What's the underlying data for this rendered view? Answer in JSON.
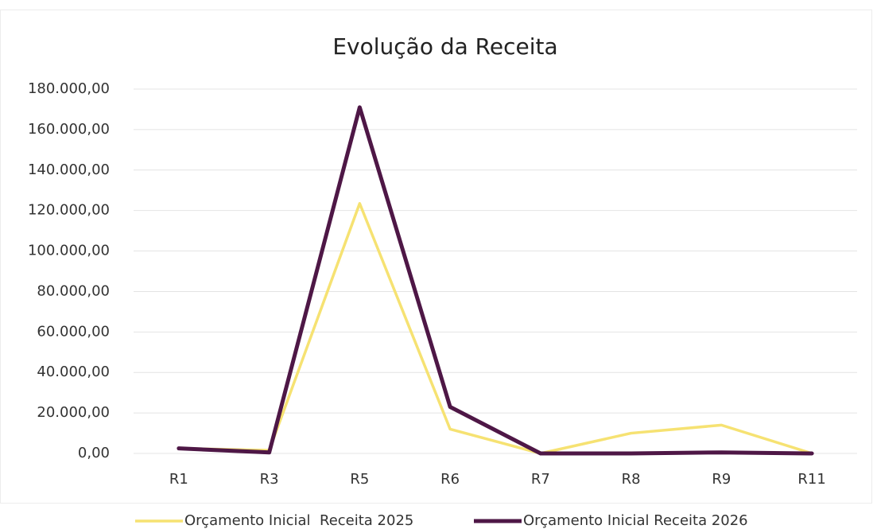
{
  "chart_data": {
    "type": "line",
    "title": "Evolução da Receita",
    "categories": [
      "R1",
      "R3",
      "R5",
      "R6",
      "R7",
      "R8",
      "R9",
      "R11"
    ],
    "series": [
      {
        "name": "Orçamento Inicial  Receita 2025",
        "color": "#f6e272",
        "values": [
          2500,
          1500,
          123500,
          12000,
          0,
          10000,
          14000,
          0
        ]
      },
      {
        "name": "Orçamento Inicial Receita 2026",
        "color": "#4e1746",
        "values": [
          2500,
          500,
          171000,
          23000,
          0,
          0,
          500,
          0
        ]
      }
    ],
    "ylim": [
      0,
      180000
    ],
    "yticks": [
      {
        "value": 0,
        "label": "0,00"
      },
      {
        "value": 20000,
        "label": "20.000,00"
      },
      {
        "value": 40000,
        "label": "40.000,00"
      },
      {
        "value": 60000,
        "label": "60.000,00"
      },
      {
        "value": 80000,
        "label": "80.000,00"
      },
      {
        "value": 100000,
        "label": "100.000,00"
      },
      {
        "value": 120000,
        "label": "120.000,00"
      },
      {
        "value": 140000,
        "label": "140.000,00"
      },
      {
        "value": 160000,
        "label": "160.000,00"
      },
      {
        "value": 180000,
        "label": "180.000,00"
      }
    ],
    "grid": true,
    "legend": "bottom"
  }
}
